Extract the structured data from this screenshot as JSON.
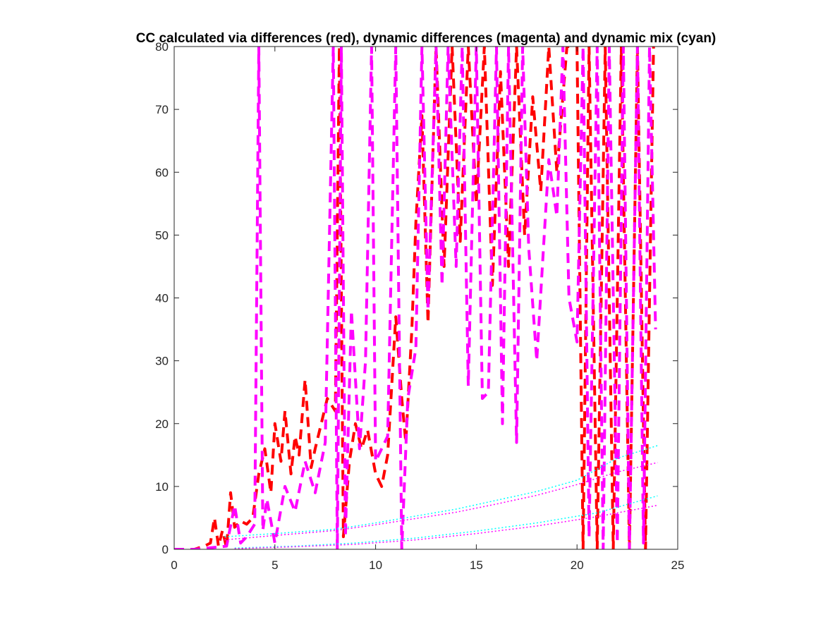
{
  "chart_data": {
    "type": "line",
    "title": "CC calculated via differences (red), dynamic differences (magenta) and dynamic mix (cyan)",
    "xlabel": "",
    "ylabel": "",
    "xlim": [
      0,
      25
    ],
    "ylim": [
      0,
      80
    ],
    "xticks": [
      0,
      5,
      10,
      15,
      20,
      25
    ],
    "yticks": [
      0,
      10,
      20,
      30,
      40,
      50,
      60,
      70,
      80
    ],
    "grid": false,
    "legend": "none",
    "colors": {
      "red": "#ff0000",
      "magenta": "#ff00ff",
      "cyan": "#00ffff"
    },
    "series": [
      {
        "color": "#ff0000",
        "style": "dashed-thick",
        "x": [
          0,
          1,
          1.5,
          1.8,
          2.0,
          2.2,
          2.4,
          2.6,
          2.8,
          3.0,
          3.3,
          3.6,
          3.9,
          4.2,
          4.5,
          4.8,
          5.0,
          5.3,
          5.5,
          5.8,
          6.0,
          6.2,
          6.5,
          6.8,
          7.0,
          7.3,
          7.6,
          8.0,
          8.2,
          8.4,
          8.7,
          9.0,
          9.3,
          9.6,
          10.0,
          10.3,
          10.6,
          11.0,
          11.3,
          11.5,
          11.8,
          12.0,
          12.3,
          12.6,
          13.0,
          13.4,
          13.8,
          14.2,
          14.6,
          15.0,
          15.4,
          15.8,
          16.2,
          16.6,
          17.0,
          17.4,
          17.8,
          18.2,
          18.6,
          19.0,
          19.5,
          20.0,
          20.3,
          20.6,
          21.0,
          21.4,
          21.8,
          22.2,
          22.6,
          23.0,
          23.4,
          23.8
        ],
        "y": [
          0,
          0,
          0.5,
          1,
          5,
          0.5,
          3,
          0.2,
          9,
          3.5,
          4.5,
          4,
          5,
          12,
          16,
          9,
          20,
          14,
          22,
          12,
          18,
          15,
          27,
          13,
          16,
          20,
          24,
          22,
          80,
          2,
          14,
          20,
          16,
          19,
          12,
          10,
          15,
          37,
          24,
          17,
          35,
          52,
          69,
          36,
          80,
          45,
          80,
          49,
          80,
          55,
          80,
          42,
          76,
          45,
          80,
          50,
          72,
          57,
          80,
          60,
          80,
          80,
          0,
          80,
          0,
          80,
          0,
          80,
          0,
          80,
          0,
          80
        ]
      },
      {
        "color": "#ff00ff",
        "style": "dashed-thick",
        "x": [
          0,
          1,
          2.0,
          2.6,
          3.0,
          3.3,
          3.6,
          4.0,
          4.2,
          4.4,
          4.6,
          5.0,
          5.5,
          6.0,
          6.5,
          7.0,
          7.5,
          7.9,
          8.1,
          8.3,
          8.5,
          8.8,
          9.2,
          9.5,
          9.8,
          10.0,
          10.3,
          10.6,
          11.0,
          11.3,
          11.6,
          12.0,
          12.3,
          12.6,
          13.0,
          13.3,
          13.6,
          14.0,
          14.3,
          14.6,
          15.0,
          15.3,
          15.6,
          16.0,
          16.3,
          16.6,
          17.0,
          17.3,
          17.6,
          18.0,
          18.3,
          18.6,
          19.0,
          19.3,
          19.6,
          20.0,
          20.3,
          20.6,
          21.0,
          21.3,
          21.6,
          22.0,
          22.3,
          22.6,
          23.0,
          23.3,
          23.6,
          23.9
        ],
        "y": [
          0,
          0,
          0.3,
          0.5,
          7,
          1,
          2,
          4,
          80,
          3,
          8,
          1,
          10,
          6,
          14,
          9,
          17,
          80,
          0,
          80,
          2,
          38,
          16,
          30,
          80,
          14,
          16,
          18,
          80,
          0,
          24,
          32,
          80,
          38,
          80,
          42,
          80,
          45,
          80,
          26,
          80,
          24,
          25,
          80,
          20,
          80,
          17,
          80,
          48,
          30,
          46,
          62,
          53,
          80,
          40,
          33,
          80,
          2,
          80,
          0,
          80,
          1,
          80,
          0,
          80,
          1,
          80,
          35
        ]
      },
      {
        "color": "#00ffff",
        "style": "dotted-thin",
        "x": [
          2.5,
          5,
          8,
          10,
          12,
          14,
          16,
          18,
          20,
          22,
          24
        ],
        "y": [
          2,
          2.5,
          3.2,
          4.2,
          5.3,
          6.4,
          7.8,
          9.2,
          11,
          14.5,
          16.5
        ]
      },
      {
        "color": "#ff00ff",
        "style": "dotted-thin",
        "x": [
          2.5,
          5,
          8,
          10,
          12,
          14,
          16,
          18,
          20,
          22,
          24
        ],
        "y": [
          1.5,
          2.2,
          3,
          3.9,
          4.9,
          5.9,
          7.2,
          8.6,
          10.3,
          12.3,
          13.8
        ]
      },
      {
        "color": "#00ffff",
        "style": "dotted-thin",
        "x": [
          3,
          6,
          9,
          12,
          15,
          18,
          21,
          24
        ],
        "y": [
          0.2,
          0.5,
          1,
          1.8,
          2.9,
          4.2,
          5.8,
          8.5
        ]
      },
      {
        "color": "#ff00ff",
        "style": "dotted-thin",
        "x": [
          3,
          6,
          9,
          12,
          15,
          18,
          21,
          24
        ],
        "y": [
          0.1,
          0.4,
          0.8,
          1.5,
          2.5,
          3.7,
          5.2,
          7
        ]
      }
    ]
  }
}
